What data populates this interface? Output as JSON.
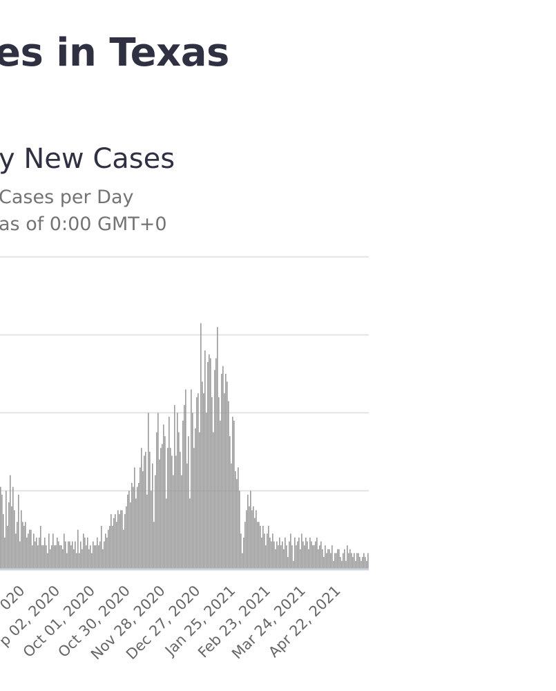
{
  "page": {
    "title": "es in Texas"
  },
  "chart_data": {
    "type": "bar",
    "title": "y New Cases",
    "subtitle": "Cases per Day",
    "note": "as of 0:00 GMT+0",
    "xlabel": "",
    "ylabel": "",
    "grid": true,
    "bar_color": "#999999",
    "grid_color": "#e3e3e3",
    "axis_color": "#c9d4de",
    "tick_label_color": "#666666",
    "x_tick_labels": [
      "020",
      "p 02, 2020",
      "Oct 01, 2020",
      "Oct 30, 2020",
      "Nov 28, 2020",
      "Dec 27, 2020",
      "Jan 25, 2021",
      "Feb 23, 2021",
      "Mar 24, 2021",
      "Apr 22, 2021"
    ],
    "gridline_levels": [
      0,
      1,
      2,
      3,
      4
    ],
    "ylim": [
      0,
      4
    ],
    "date_range": [
      "Aug 04, 2020",
      "May 11, 2021"
    ],
    "values_note": "values in gridline units (y-axis tick labels are not visible)",
    "values": [
      1.1,
      0.9,
      0.85,
      1.05,
      0.95,
      0.7,
      0.4,
      1.0,
      0.55,
      0.85,
      1.2,
      0.8,
      1.05,
      0.75,
      0.45,
      0.6,
      0.95,
      0.35,
      0.75,
      0.6,
      0.55,
      0.6,
      0.4,
      0.45,
      0.5,
      0.5,
      0.3,
      0.45,
      0.35,
      0.4,
      0.3,
      0.4,
      0.55,
      0.3,
      0.3,
      0.4,
      0.3,
      0.2,
      0.45,
      0.25,
      0.3,
      0.45,
      0.3,
      0.3,
      0.4,
      0.35,
      0.3,
      0.3,
      0.25,
      0.45,
      0.35,
      0.2,
      0.35,
      0.35,
      0.3,
      0.35,
      0.25,
      0.35,
      0.2,
      0.5,
      0.2,
      0.35,
      0.25,
      0.45,
      0.4,
      0.3,
      0.4,
      0.25,
      0.3,
      0.2,
      0.35,
      0.3,
      0.3,
      0.4,
      0.3,
      0.35,
      0.55,
      0.25,
      0.35,
      0.45,
      0.4,
      0.5,
      0.55,
      0.7,
      0.55,
      0.65,
      0.7,
      0.6,
      0.75,
      0.7,
      0.75,
      0.75,
      0.5,
      0.7,
      0.8,
      0.95,
      1.0,
      0.85,
      1.1,
      1.05,
      1.3,
      0.9,
      1.05,
      1.1,
      1.3,
      1.55,
      1.25,
      1.45,
      1.5,
      0.95,
      2.0,
      1.5,
      1.0,
      1.35,
      0.6,
      1.2,
      1.75,
      2.0,
      1.4,
      1.55,
      1.6,
      1.85,
      1.7,
      0.9,
      1.55,
      1.95,
      1.55,
      1.45,
      1.2,
      2.1,
      1.45,
      2.0,
      1.75,
      1.5,
      1.2,
      1.9,
      2.1,
      2.3,
      1.35,
      1.7,
      0.9,
      2.3,
      2.0,
      1.55,
      1.8,
      2.2,
      2.25,
      1.75,
      3.15,
      2.4,
      2.25,
      2.8,
      2.0,
      2.65,
      2.75,
      2.7,
      2.2,
      1.75,
      2.55,
      2.7,
      3.1,
      2.2,
      1.9,
      2.5,
      2.6,
      2.25,
      2.5,
      2.4,
      2.15,
      1.7,
      1.35,
      1.95,
      1.9,
      1.25,
      1.15,
      1.3,
      1.0,
      0.45,
      0.2,
      0.4,
      0.6,
      0.75,
      0.95,
      0.8,
      1.0,
      0.75,
      0.8,
      0.65,
      0.75,
      0.6,
      0.6,
      0.55,
      0.4,
      0.55,
      0.45,
      0.3,
      0.45,
      0.55,
      0.4,
      0.35,
      0.45,
      0.35,
      0.25,
      0.35,
      0.3,
      0.4,
      0.3,
      0.35,
      0.25,
      0.4,
      0.3,
      0.15,
      0.35,
      0.45,
      0.3,
      0.1,
      0.4,
      0.3,
      0.35,
      0.4,
      0.25,
      0.45,
      0.35,
      0.3,
      0.4,
      0.35,
      0.25,
      0.4,
      0.35,
      0.3,
      0.3,
      0.35,
      0.4,
      0.25,
      0.3,
      0.35,
      0.25,
      0.15,
      0.3,
      0.2,
      0.25,
      0.25,
      0.2,
      0.3,
      0.1,
      0.2,
      0.2,
      0.25,
      0.25,
      0.15,
      0.1,
      0.2,
      0.25,
      0.1,
      0.3,
      0.2,
      0.25,
      0.2,
      0.15,
      0.2,
      0.1,
      0.2,
      0.2,
      0.15,
      0.1,
      0.15,
      0.2,
      0.15,
      0.1,
      0.2
    ]
  }
}
